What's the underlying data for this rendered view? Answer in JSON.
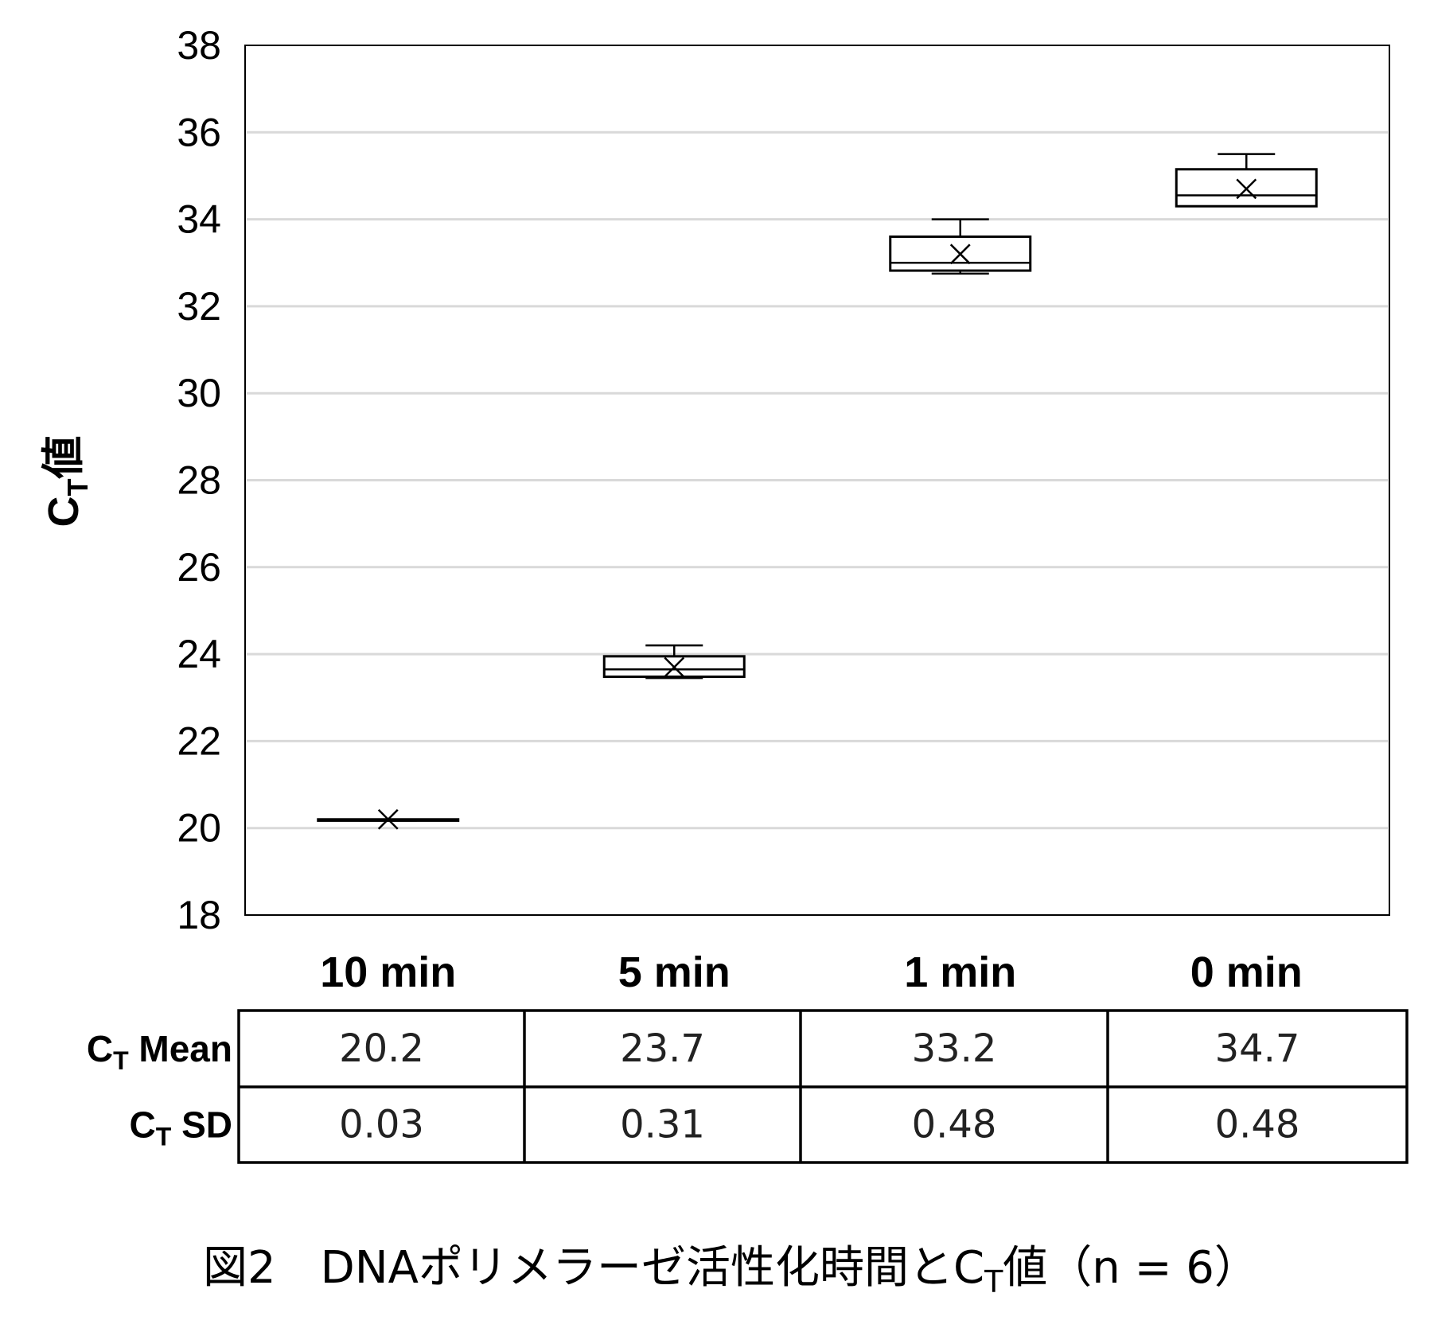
{
  "chart_data": {
    "type": "box",
    "ylabel": "CT値",
    "ylabel_parts": {
      "base": "C",
      "sub": "T",
      "suffix": "値"
    },
    "ylim": [
      18,
      38
    ],
    "yticks": [
      18,
      20,
      22,
      24,
      26,
      28,
      30,
      32,
      34,
      36,
      38
    ],
    "grid": true,
    "categories": [
      "10 min",
      "5 min",
      "1 min",
      "0 min"
    ],
    "boxes": [
      {
        "min": 20.17,
        "q1": 20.17,
        "median": 20.18,
        "q3": 20.2,
        "max": 20.2,
        "mean": 20.2
      },
      {
        "min": 23.45,
        "q1": 23.48,
        "median": 23.65,
        "q3": 23.95,
        "max": 24.2,
        "mean": 23.7
      },
      {
        "min": 32.75,
        "q1": 32.82,
        "median": 33.0,
        "q3": 33.6,
        "max": 34.0,
        "mean": 33.2
      },
      {
        "min": 34.3,
        "q1": 34.3,
        "median": 34.55,
        "q3": 35.15,
        "max": 35.5,
        "mean": 34.7
      }
    ],
    "table": {
      "rows": [
        {
          "label_base": "C",
          "label_sub": "T",
          "label_rest": " Mean",
          "values": [
            "20.2",
            "23.7",
            "33.2",
            "34.7"
          ]
        },
        {
          "label_base": "C",
          "label_sub": "T",
          "label_rest": " SD",
          "values": [
            "0.03",
            "0.31",
            "0.48",
            "0.48"
          ]
        }
      ]
    },
    "caption": {
      "prefix": "図2　DNAポリメラーゼ活性化時間とC",
      "sub": "T",
      "suffix": "値（n = 6）"
    }
  }
}
